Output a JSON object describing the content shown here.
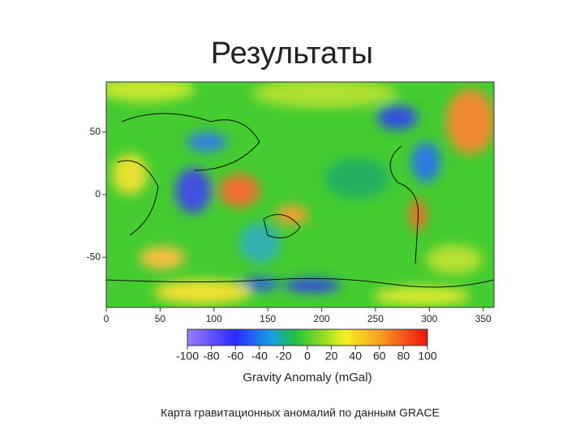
{
  "title": "Результаты",
  "caption": "Карта гравитационных аномалий по данным GRACE",
  "map": {
    "xlim": [
      0,
      360
    ],
    "ylim": [
      -90,
      90
    ],
    "xticks": [
      0,
      50,
      100,
      150,
      200,
      250,
      300,
      350
    ],
    "yticks": [
      -50,
      0,
      50
    ]
  },
  "colorbar": {
    "label": "Gravity Anomaly (mGal)",
    "lim": [
      -100,
      100
    ],
    "ticks": [
      -100,
      -80,
      -60,
      -40,
      -20,
      0,
      20,
      40,
      60,
      80,
      100
    ]
  }
}
